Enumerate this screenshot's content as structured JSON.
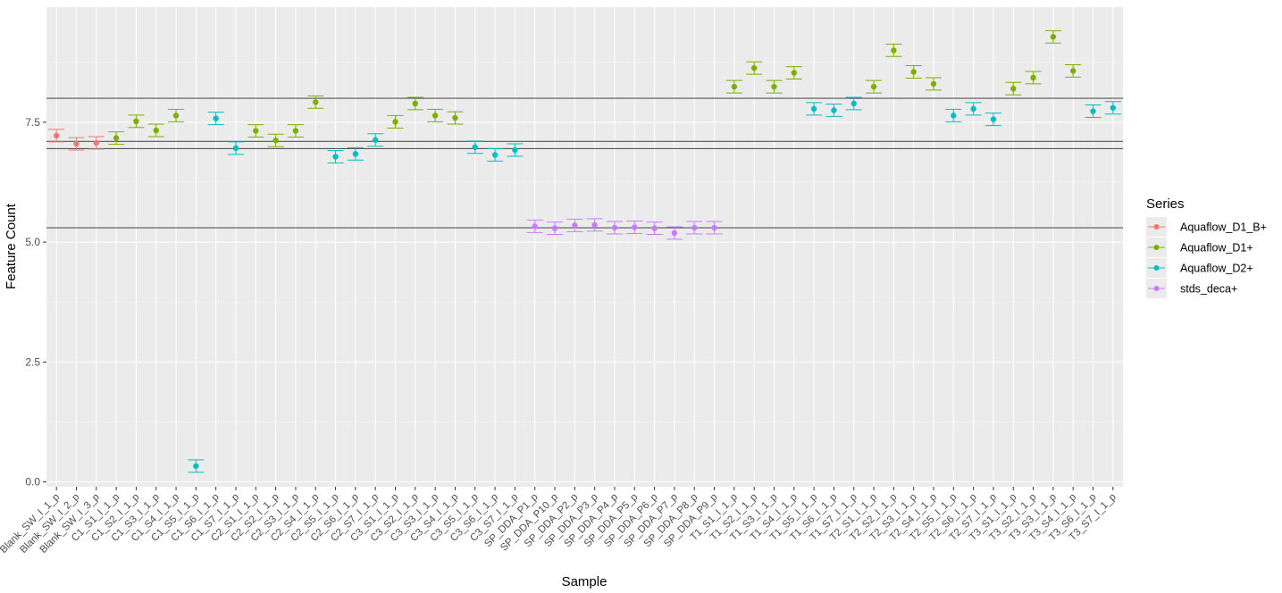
{
  "chart_data": {
    "type": "scatter",
    "title": "",
    "xlabel": "Sample",
    "ylabel": "Feature Count",
    "ylim": [
      -0.1,
      9.9
    ],
    "yticks": [
      0.0,
      2.5,
      5.0,
      7.5
    ],
    "ytick_labels": [
      "0.0",
      "2.5",
      "5.0",
      "7.5"
    ],
    "grid": true,
    "legend": {
      "title": "Series",
      "position": "right"
    },
    "hlines": [
      8.0,
      7.1,
      6.95,
      5.3
    ],
    "series": [
      {
        "name": "Aquaflow_D1_B+",
        "color": "#F8766D"
      },
      {
        "name": "Aquaflow_D1+",
        "color": "#7CAE00"
      },
      {
        "name": "Aquaflow_D2+",
        "color": "#00BFC4"
      },
      {
        "name": "stds_deca+",
        "color": "#C77CFF"
      }
    ],
    "points": [
      {
        "label": "Blank_SW_I_1_p",
        "series": 0,
        "y": 7.22,
        "err": 0.13
      },
      {
        "label": "Blank_SW_I_2_p",
        "series": 0,
        "y": 7.05,
        "err": 0.13
      },
      {
        "label": "Blank_SW_I_3_p",
        "series": 0,
        "y": 7.07,
        "err": 0.13
      },
      {
        "label": "C1_S1_I_1_p",
        "series": 1,
        "y": 7.17,
        "err": 0.13
      },
      {
        "label": "C1_S2_I_1_p",
        "series": 1,
        "y": 7.52,
        "err": 0.13
      },
      {
        "label": "C1_S3_I_1_p",
        "series": 1,
        "y": 7.33,
        "err": 0.13
      },
      {
        "label": "C1_S4_I_1_p",
        "series": 1,
        "y": 7.64,
        "err": 0.13
      },
      {
        "label": "C1_S5_I_1_p",
        "series": 2,
        "y": 0.33,
        "err": 0.13
      },
      {
        "label": "C1_S6_I_1_p",
        "series": 2,
        "y": 7.58,
        "err": 0.13
      },
      {
        "label": "C1_S7_I_1_p",
        "series": 2,
        "y": 6.96,
        "err": 0.13
      },
      {
        "label": "C2_S1_I_1_p",
        "series": 1,
        "y": 7.32,
        "err": 0.13
      },
      {
        "label": "C2_S2_I_1_p",
        "series": 1,
        "y": 7.12,
        "err": 0.13
      },
      {
        "label": "C2_S3_I_1_p",
        "series": 1,
        "y": 7.32,
        "err": 0.13
      },
      {
        "label": "C2_S4_I_1_p",
        "series": 1,
        "y": 7.92,
        "err": 0.13
      },
      {
        "label": "C2_S5_I_1_p",
        "series": 2,
        "y": 6.78,
        "err": 0.13
      },
      {
        "label": "C2_S6_I_1_p",
        "series": 2,
        "y": 6.84,
        "err": 0.13
      },
      {
        "label": "C2_S7_I_1_p",
        "series": 2,
        "y": 7.13,
        "err": 0.13
      },
      {
        "label": "C3_S1_I_1_p",
        "series": 1,
        "y": 7.51,
        "err": 0.13
      },
      {
        "label": "C3_S2_I_1_p",
        "series": 1,
        "y": 7.89,
        "err": 0.13
      },
      {
        "label": "C3_S3_I_1_p",
        "series": 1,
        "y": 7.64,
        "err": 0.13
      },
      {
        "label": "C3_S4_I_1_p",
        "series": 1,
        "y": 7.59,
        "err": 0.13
      },
      {
        "label": "C3_S5_I_1_p",
        "series": 2,
        "y": 6.98,
        "err": 0.13
      },
      {
        "label": "C3_S6_I_1_p",
        "series": 2,
        "y": 6.82,
        "err": 0.13
      },
      {
        "label": "C3_S7_I_1_p",
        "series": 2,
        "y": 6.92,
        "err": 0.13
      },
      {
        "label": "SP_DDA_P1_p",
        "series": 3,
        "y": 5.33,
        "err": 0.13
      },
      {
        "label": "SP_DDA_P10_p",
        "series": 3,
        "y": 5.29,
        "err": 0.13
      },
      {
        "label": "SP_DDA_P2_p",
        "series": 3,
        "y": 5.35,
        "err": 0.13
      },
      {
        "label": "SP_DDA_P3_p",
        "series": 3,
        "y": 5.36,
        "err": 0.13
      },
      {
        "label": "SP_DDA_P4_p",
        "series": 3,
        "y": 5.3,
        "err": 0.13
      },
      {
        "label": "SP_DDA_P5_p",
        "series": 3,
        "y": 5.31,
        "err": 0.13
      },
      {
        "label": "SP_DDA_P6_p",
        "series": 3,
        "y": 5.29,
        "err": 0.13
      },
      {
        "label": "SP_DDA_P7_p",
        "series": 3,
        "y": 5.19,
        "err": 0.13
      },
      {
        "label": "SP_DDA_P8_p",
        "series": 3,
        "y": 5.3,
        "err": 0.13
      },
      {
        "label": "SP_DDA_P9_p",
        "series": 3,
        "y": 5.3,
        "err": 0.13
      },
      {
        "label": "T1_S1_I_1_p",
        "series": 1,
        "y": 8.24,
        "err": 0.13
      },
      {
        "label": "T1_S2_I_1_p",
        "series": 1,
        "y": 8.63,
        "err": 0.13
      },
      {
        "label": "T1_S3_I_1_p",
        "series": 1,
        "y": 8.24,
        "err": 0.13
      },
      {
        "label": "T1_S4_I_1_p",
        "series": 1,
        "y": 8.53,
        "err": 0.13
      },
      {
        "label": "T1_S5_I_1_p",
        "series": 2,
        "y": 7.78,
        "err": 0.13
      },
      {
        "label": "T1_S6_I_1_p",
        "series": 2,
        "y": 7.75,
        "err": 0.13
      },
      {
        "label": "T1_S7_I_1_p",
        "series": 2,
        "y": 7.89,
        "err": 0.13
      },
      {
        "label": "T2_S1_I_1_p",
        "series": 1,
        "y": 8.24,
        "err": 0.13
      },
      {
        "label": "T2_S2_I_1_p",
        "series": 1,
        "y": 9.0,
        "err": 0.13
      },
      {
        "label": "T2_S3_I_1_p",
        "series": 1,
        "y": 8.55,
        "err": 0.13
      },
      {
        "label": "T2_S4_I_1_p",
        "series": 1,
        "y": 8.3,
        "err": 0.13
      },
      {
        "label": "T2_S5_I_1_p",
        "series": 2,
        "y": 7.64,
        "err": 0.13
      },
      {
        "label": "T2_S6_I_1_p",
        "series": 2,
        "y": 7.78,
        "err": 0.13
      },
      {
        "label": "T2_S7_I_1_p",
        "series": 2,
        "y": 7.56,
        "err": 0.13
      },
      {
        "label": "T3_S1_I_1_p",
        "series": 1,
        "y": 8.2,
        "err": 0.13
      },
      {
        "label": "T3_S2_I_1_p",
        "series": 1,
        "y": 8.43,
        "err": 0.13
      },
      {
        "label": "T3_S3_I_1_p",
        "series": 1,
        "y": 9.28,
        "err": 0.13
      },
      {
        "label": "T3_S4_I_1_p",
        "series": 1,
        "y": 8.57,
        "err": 0.13
      },
      {
        "label": "T3_S6_I_1_p",
        "series": 2,
        "y": 7.73,
        "err": 0.13
      },
      {
        "label": "T3_S7_I_1_p",
        "series": 2,
        "y": 7.8,
        "err": 0.13
      }
    ]
  }
}
